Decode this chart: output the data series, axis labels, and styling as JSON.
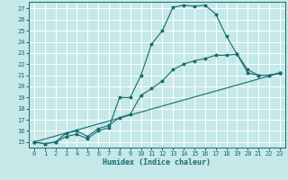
{
  "xlabel": "Humidex (Indice chaleur)",
  "bg_color": "#c5e8e8",
  "grid_color": "#ffffff",
  "line_color": "#1a6b6b",
  "ylim": [
    14.5,
    27.6
  ],
  "xlim": [
    -0.5,
    23.5
  ],
  "yticks": [
    15,
    16,
    17,
    18,
    19,
    20,
    21,
    22,
    23,
    24,
    25,
    26,
    27
  ],
  "xticks": [
    0,
    1,
    2,
    3,
    4,
    5,
    6,
    7,
    8,
    9,
    10,
    11,
    12,
    13,
    14,
    15,
    16,
    17,
    18,
    19,
    20,
    21,
    22,
    23
  ],
  "line1_x": [
    0,
    1,
    2,
    3,
    4,
    5,
    6,
    7,
    8,
    9,
    10,
    11,
    12,
    13,
    14,
    15,
    16,
    17,
    18,
    19,
    20,
    21,
    22,
    23
  ],
  "line1_y": [
    15.0,
    14.85,
    15.0,
    15.5,
    15.7,
    15.3,
    16.0,
    16.3,
    19.0,
    19.0,
    21.0,
    23.8,
    25.0,
    27.1,
    27.3,
    27.2,
    27.3,
    26.5,
    24.5,
    22.9,
    21.2,
    21.0,
    21.0,
    21.2
  ],
  "line2_x": [
    0,
    1,
    2,
    3,
    4,
    5,
    6,
    7,
    8,
    9,
    10,
    11,
    12,
    13,
    14,
    15,
    16,
    17,
    18,
    19,
    20,
    21,
    22,
    23
  ],
  "line2_y": [
    15.0,
    14.85,
    15.0,
    15.8,
    16.0,
    15.5,
    16.2,
    16.5,
    17.2,
    17.5,
    19.2,
    19.8,
    20.5,
    21.5,
    22.0,
    22.3,
    22.5,
    22.8,
    22.8,
    22.9,
    21.5,
    21.0,
    21.0,
    21.2
  ],
  "line3_x": [
    0,
    23
  ],
  "line3_y": [
    15.0,
    21.2
  ]
}
